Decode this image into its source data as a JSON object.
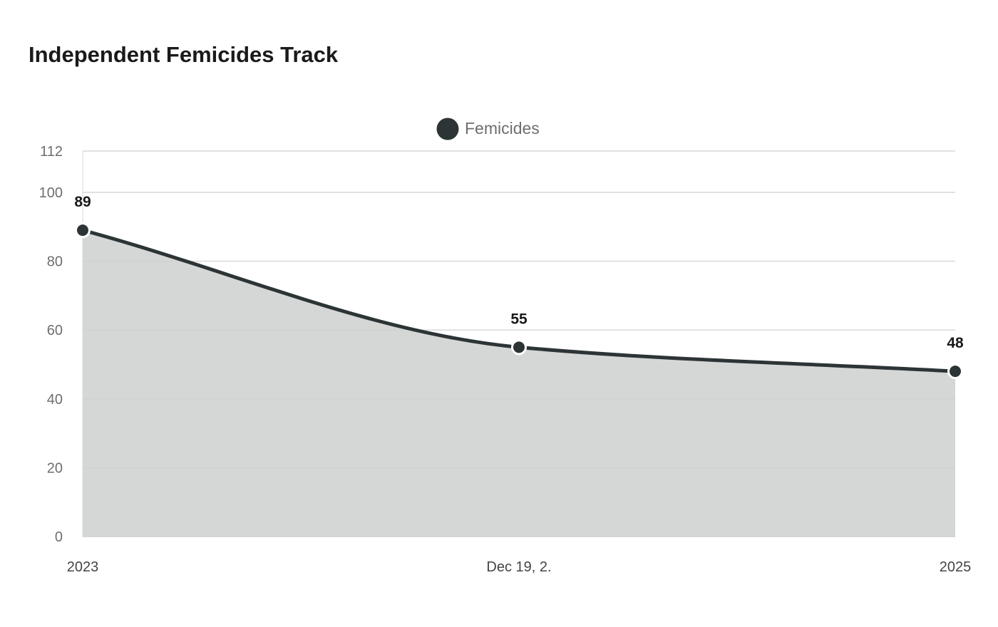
{
  "chart_data": {
    "type": "area",
    "title": "Independent Femicides Track",
    "x_tick_labels": [
      "2023",
      "Dec 19, 2.",
      "2025"
    ],
    "series": [
      {
        "name": "Femicides",
        "values": [
          89,
          55,
          48
        ],
        "data_labels": [
          "89",
          "55",
          "48"
        ]
      }
    ],
    "y_ticks": [
      0,
      20,
      40,
      60,
      80,
      100,
      112
    ],
    "ylim": [
      0,
      112
    ],
    "grid": true,
    "legend": "top-center",
    "colors": {
      "line": "#2d3436",
      "fill": "#d5d7d6",
      "grid": "#e6e6e6",
      "marker_stroke": "#ffffff"
    }
  }
}
